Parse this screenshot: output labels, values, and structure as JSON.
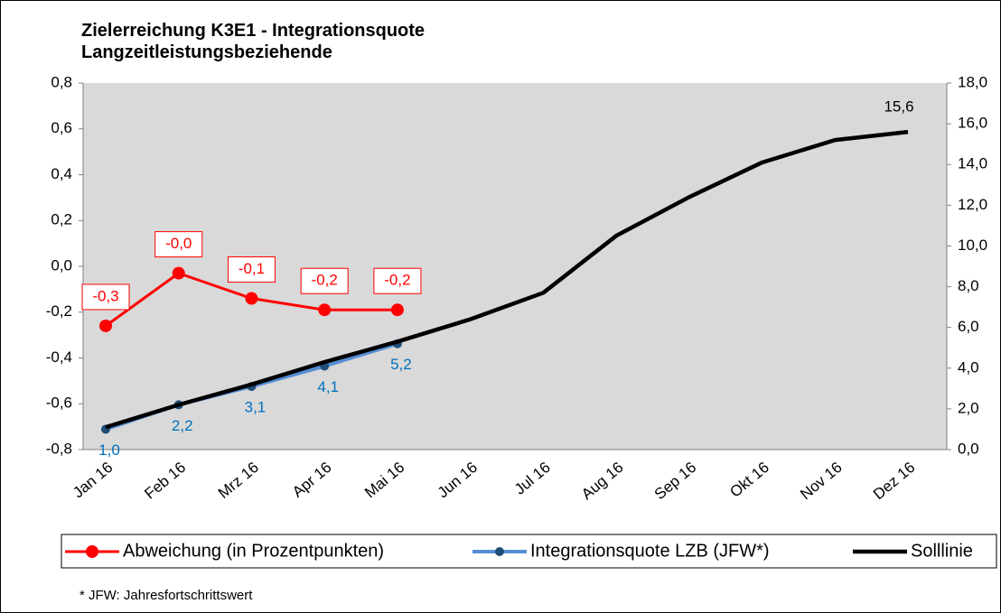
{
  "chart_data": {
    "type": "line",
    "title": "Zielerreichung K3E1 - Integrationsquote Langzeitleistungsbeziehende",
    "categories": [
      "Jan 16",
      "Feb 16",
      "Mrz 16",
      "Apr 16",
      "Mai 16",
      "Jun 16",
      "Jul 16",
      "Aug 16",
      "Sep 16",
      "Okt 16",
      "Nov 16",
      "Dez 16"
    ],
    "series": [
      {
        "name": "Abweichung (in Prozentpunkten)",
        "color": "#ff0000",
        "axis": "y",
        "values": [
          -0.26,
          -0.03,
          -0.14,
          -0.19,
          -0.19,
          null,
          null,
          null,
          null,
          null,
          null,
          null
        ],
        "value_labels": [
          "-0,3",
          "-0,0",
          "-0,1",
          "-0,2",
          "-0,2",
          null,
          null,
          null,
          null,
          null,
          null,
          null
        ]
      },
      {
        "name": "Integrationsquote LZB (JFW*)",
        "color": "#558ed5",
        "axis": "y2",
        "values": [
          1.0,
          2.2,
          3.1,
          4.1,
          5.2,
          null,
          null,
          null,
          null,
          null,
          null,
          null
        ],
        "value_labels": [
          "1,0",
          "2,2",
          "3,1",
          "4,1",
          "5,2",
          null,
          null,
          null,
          null,
          null,
          null,
          null
        ]
      },
      {
        "name": "Solllinie",
        "color": "#000000",
        "axis": "y2",
        "values": [
          1.1,
          2.2,
          3.2,
          4.3,
          5.3,
          6.4,
          7.7,
          10.5,
          12.4,
          14.1,
          15.2,
          15.6
        ],
        "value_labels": [
          null,
          null,
          null,
          null,
          null,
          null,
          null,
          null,
          null,
          null,
          null,
          "15,6"
        ]
      }
    ],
    "ylim": [
      -0.8,
      0.8
    ],
    "yticks": [
      {
        "value": -0.8,
        "label": "-0,8"
      },
      {
        "value": -0.6,
        "label": "-0,6"
      },
      {
        "value": -0.4,
        "label": "-0,4"
      },
      {
        "value": -0.2,
        "label": "-0,2"
      },
      {
        "value": 0,
        "label": "0,0"
      },
      {
        "value": 0.2,
        "label": "0,2"
      },
      {
        "value": 0.4,
        "label": "0,4"
      },
      {
        "value": 0.6,
        "label": "0,6"
      },
      {
        "value": 0.8,
        "label": "0,8"
      }
    ],
    "y2lim": [
      0,
      18
    ],
    "y2ticks": [
      {
        "value": 0,
        "label": "0,0"
      },
      {
        "value": 2,
        "label": "2,0"
      },
      {
        "value": 4,
        "label": "4,0"
      },
      {
        "value": 6,
        "label": "6,0"
      },
      {
        "value": 8,
        "label": "8,0"
      },
      {
        "value": 10,
        "label": "10,0"
      },
      {
        "value": 12,
        "label": "12,0"
      },
      {
        "value": 14,
        "label": "14,0"
      },
      {
        "value": 16,
        "label": "16,0"
      },
      {
        "value": 18,
        "label": "18,0"
      }
    ],
    "grid": false,
    "legend": "bottom",
    "footnote": "* JFW: Jahresfortschrittswert"
  }
}
